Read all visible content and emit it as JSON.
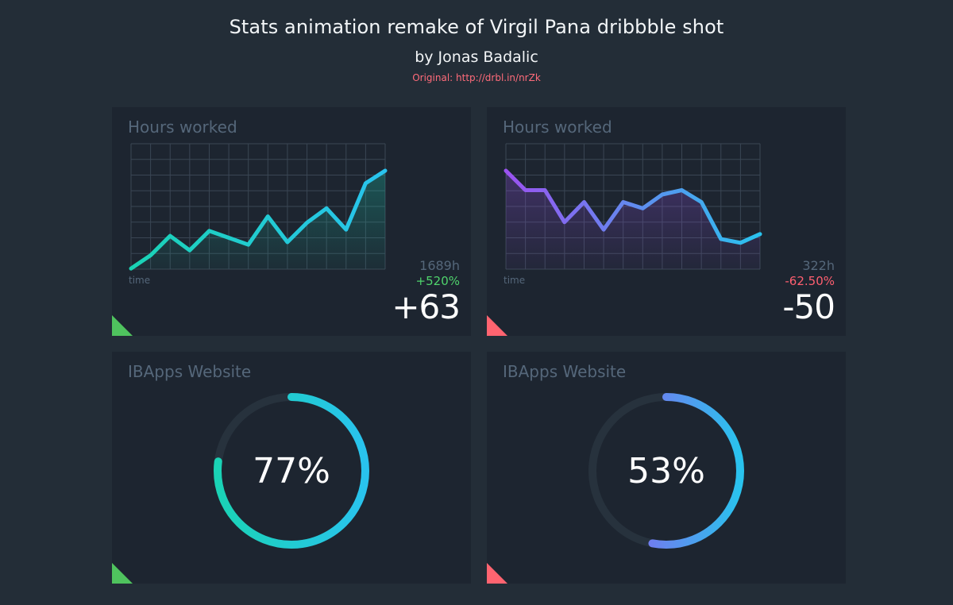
{
  "header": {
    "title": "Stats animation remake of Virgil Pana dribbble shot",
    "author": "by Jonas Badalic",
    "original": "Original: http://drbl.in/nrZk"
  },
  "cards": [
    {
      "title": "Hours worked",
      "time_label": "time",
      "hours": "1689h",
      "change": "+520%",
      "value": "+63",
      "change_color": "#4fd36c",
      "corner_color": "#4fc35e",
      "line_colors": [
        "#1ad3b5",
        "#29c3ee"
      ]
    },
    {
      "title": "Hours worked",
      "time_label": "time",
      "hours": "322h",
      "change": "-62.50%",
      "value": "-50",
      "change_color": "#ff5f70",
      "corner_color": "#ff6470",
      "line_colors": [
        "#9b52f0",
        "#29c3ee"
      ]
    },
    {
      "title": "IBApps Website",
      "value": "77%",
      "progress": 0.77,
      "corner_color": "#4fc35e",
      "ring_colors": [
        "#1ad3b5",
        "#29c3ee"
      ]
    },
    {
      "title": "IBApps Website",
      "value": "53%",
      "progress": 0.53,
      "corner_color": "#ff6470",
      "ring_colors": [
        "#9b52f0",
        "#29c3ee"
      ]
    }
  ],
  "chart_data": [
    {
      "type": "line",
      "x": [
        0,
        1,
        2,
        3,
        4,
        5,
        6,
        7,
        8,
        9,
        10,
        11,
        12,
        13
      ],
      "y": [
        1,
        22,
        53,
        30,
        61,
        50,
        39,
        84,
        43,
        74,
        97,
        63,
        137,
        157
      ],
      "ylim": [
        0,
        200
      ],
      "grid": true,
      "fill": "area"
    },
    {
      "type": "line",
      "x": [
        0,
        1,
        2,
        3,
        4,
        5,
        6,
        7,
        8,
        9,
        10,
        11,
        12,
        13
      ],
      "y": [
        157,
        126,
        126,
        75,
        107,
        63,
        107,
        97,
        119,
        126,
        107,
        48,
        42,
        56
      ],
      "ylim": [
        0,
        200
      ],
      "grid": true,
      "fill": "area"
    }
  ]
}
